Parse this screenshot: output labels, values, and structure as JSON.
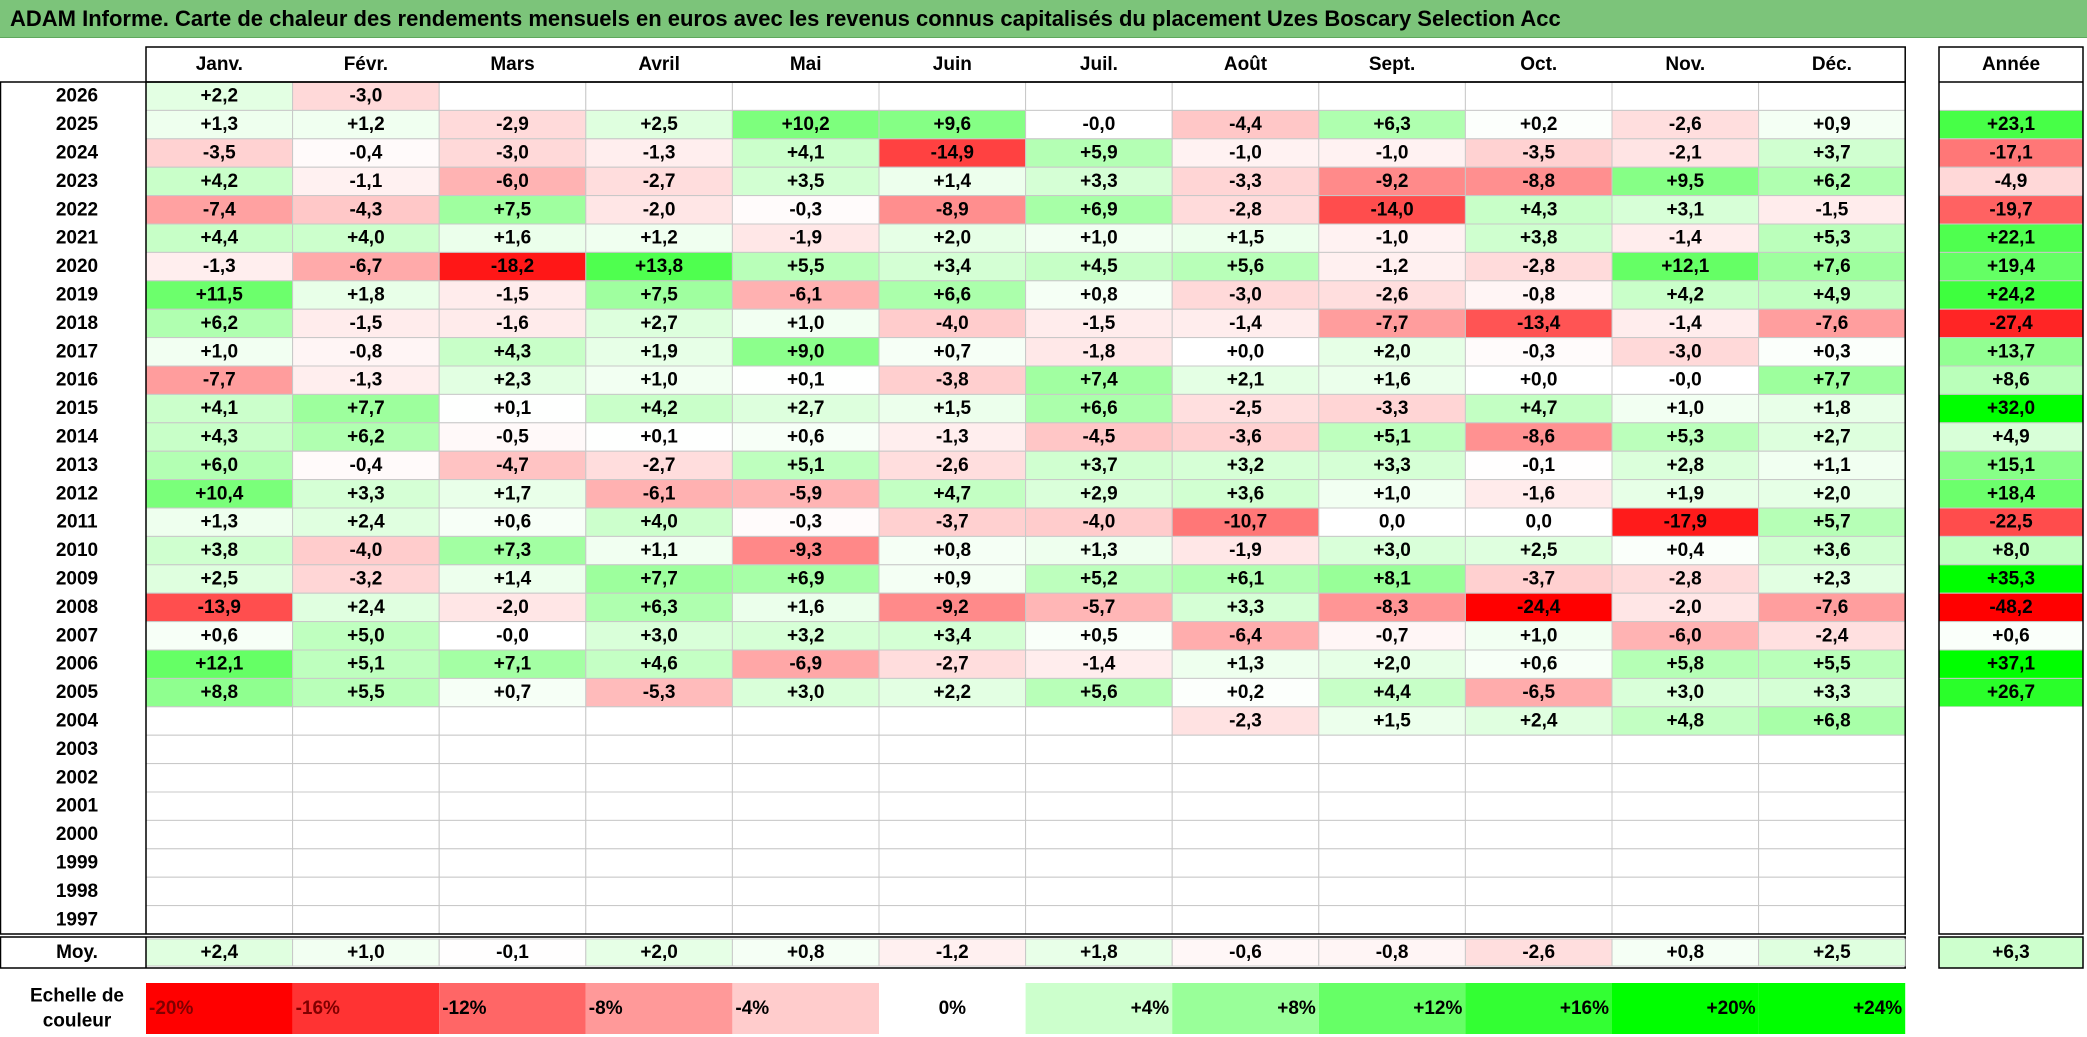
{
  "title": "ADAM Informe. Carte de chaleur des rendements mensuels en euros avec les revenus connus capitalisés du placement Uzes Boscary Selection Acc",
  "chart_data": {
    "type": "heatmap",
    "months": [
      "Janv.",
      "Févr.",
      "Mars",
      "Avril",
      "Mai",
      "Juin",
      "Juil.",
      "Août",
      "Sept.",
      "Oct.",
      "Nov.",
      "Déc."
    ],
    "year_header": "Année",
    "rows": [
      {
        "year": "2026",
        "months": [
          "+2,2",
          "-3,0",
          "",
          "",
          "",
          "",
          "",
          "",
          "",
          "",
          "",
          ""
        ],
        "annual": ""
      },
      {
        "year": "2025",
        "months": [
          "+1,3",
          "+1,2",
          "-2,9",
          "+2,5",
          "+10,2",
          "+9,6",
          "-0,0",
          "-4,4",
          "+6,3",
          "+0,2",
          "-2,6",
          "+0,9"
        ],
        "annual": "+23,1"
      },
      {
        "year": "2024",
        "months": [
          "-3,5",
          "-0,4",
          "-3,0",
          "-1,3",
          "+4,1",
          "-14,9",
          "+5,9",
          "-1,0",
          "-1,0",
          "-3,5",
          "-2,1",
          "+3,7"
        ],
        "annual": "-17,1"
      },
      {
        "year": "2023",
        "months": [
          "+4,2",
          "-1,1",
          "-6,0",
          "-2,7",
          "+3,5",
          "+1,4",
          "+3,3",
          "-3,3",
          "-9,2",
          "-8,8",
          "+9,5",
          "+6,2"
        ],
        "annual": "-4,9"
      },
      {
        "year": "2022",
        "months": [
          "-7,4",
          "-4,3",
          "+7,5",
          "-2,0",
          "-0,3",
          "-8,9",
          "+6,9",
          "-2,8",
          "-14,0",
          "+4,3",
          "+3,1",
          "-1,5"
        ],
        "annual": "-19,7"
      },
      {
        "year": "2021",
        "months": [
          "+4,4",
          "+4,0",
          "+1,6",
          "+1,2",
          "-1,9",
          "+2,0",
          "+1,0",
          "+1,5",
          "-1,0",
          "+3,8",
          "-1,4",
          "+5,3"
        ],
        "annual": "+22,1"
      },
      {
        "year": "2020",
        "months": [
          "-1,3",
          "-6,7",
          "-18,2",
          "+13,8",
          "+5,5",
          "+3,4",
          "+4,5",
          "+5,6",
          "-1,2",
          "-2,8",
          "+12,1",
          "+7,6"
        ],
        "annual": "+19,4"
      },
      {
        "year": "2019",
        "months": [
          "+11,5",
          "+1,8",
          "-1,5",
          "+7,5",
          "-6,1",
          "+6,6",
          "+0,8",
          "-3,0",
          "-2,6",
          "-0,8",
          "+4,2",
          "+4,9"
        ],
        "annual": "+24,2"
      },
      {
        "year": "2018",
        "months": [
          "+6,2",
          "-1,5",
          "-1,6",
          "+2,7",
          "+1,0",
          "-4,0",
          "-1,5",
          "-1,4",
          "-7,7",
          "-13,4",
          "-1,4",
          "-7,6"
        ],
        "annual": "-27,4"
      },
      {
        "year": "2017",
        "months": [
          "+1,0",
          "-0,8",
          "+4,3",
          "+1,9",
          "+9,0",
          "+0,7",
          "-1,8",
          "+0,0",
          "+2,0",
          "-0,3",
          "-3,0",
          "+0,3"
        ],
        "annual": "+13,7"
      },
      {
        "year": "2016",
        "months": [
          "-7,7",
          "-1,3",
          "+2,3",
          "+1,0",
          "+0,1",
          "-3,8",
          "+7,4",
          "+2,1",
          "+1,6",
          "+0,0",
          "-0,0",
          "+7,7"
        ],
        "annual": "+8,6"
      },
      {
        "year": "2015",
        "months": [
          "+4,1",
          "+7,7",
          "+0,1",
          "+4,2",
          "+2,7",
          "+1,5",
          "+6,6",
          "-2,5",
          "-3,3",
          "+4,7",
          "+1,0",
          "+1,8"
        ],
        "annual": "+32,0"
      },
      {
        "year": "2014",
        "months": [
          "+4,3",
          "+6,2",
          "-0,5",
          "+0,1",
          "+0,6",
          "-1,3",
          "-4,5",
          "-3,6",
          "+5,1",
          "-8,6",
          "+5,3",
          "+2,7"
        ],
        "annual": "+4,9"
      },
      {
        "year": "2013",
        "months": [
          "+6,0",
          "-0,4",
          "-4,7",
          "-2,7",
          "+5,1",
          "-2,6",
          "+3,7",
          "+3,2",
          "+3,3",
          "-0,1",
          "+2,8",
          "+1,1"
        ],
        "annual": "+15,1"
      },
      {
        "year": "2012",
        "months": [
          "+10,4",
          "+3,3",
          "+1,7",
          "-6,1",
          "-5,9",
          "+4,7",
          "+2,9",
          "+3,6",
          "+1,0",
          "-1,6",
          "+1,9",
          "+2,0"
        ],
        "annual": "+18,4"
      },
      {
        "year": "2011",
        "months": [
          "+1,3",
          "+2,4",
          "+0,6",
          "+4,0",
          "-0,3",
          "-3,7",
          "-4,0",
          "-10,7",
          "0,0",
          "0,0",
          "-17,9",
          "+5,7"
        ],
        "annual": "-22,5"
      },
      {
        "year": "2010",
        "months": [
          "+3,8",
          "-4,0",
          "+7,3",
          "+1,1",
          "-9,3",
          "+0,8",
          "+1,3",
          "-1,9",
          "+3,0",
          "+2,5",
          "+0,4",
          "+3,6"
        ],
        "annual": "+8,0"
      },
      {
        "year": "2009",
        "months": [
          "+2,5",
          "-3,2",
          "+1,4",
          "+7,7",
          "+6,9",
          "+0,9",
          "+5,2",
          "+6,1",
          "+8,1",
          "-3,7",
          "-2,8",
          "+2,3"
        ],
        "annual": "+35,3"
      },
      {
        "year": "2008",
        "months": [
          "-13,9",
          "+2,4",
          "-2,0",
          "+6,3",
          "+1,6",
          "-9,2",
          "-5,7",
          "+3,3",
          "-8,3",
          "-24,4",
          "-2,0",
          "-7,6"
        ],
        "annual": "-48,2"
      },
      {
        "year": "2007",
        "months": [
          "+0,6",
          "+5,0",
          "-0,0",
          "+3,0",
          "+3,2",
          "+3,4",
          "+0,5",
          "-6,4",
          "-0,7",
          "+1,0",
          "-6,0",
          "-2,4"
        ],
        "annual": "+0,6"
      },
      {
        "year": "2006",
        "months": [
          "+12,1",
          "+5,1",
          "+7,1",
          "+4,6",
          "-6,9",
          "-2,7",
          "-1,4",
          "+1,3",
          "+2,0",
          "+0,6",
          "+5,8",
          "+5,5"
        ],
        "annual": "+37,1"
      },
      {
        "year": "2005",
        "months": [
          "+8,8",
          "+5,5",
          "+0,7",
          "-5,3",
          "+3,0",
          "+2,2",
          "+5,6",
          "+0,2",
          "+4,4",
          "-6,5",
          "+3,0",
          "+3,3"
        ],
        "annual": "+26,7"
      },
      {
        "year": "2004",
        "months": [
          "",
          "",
          "",
          "",
          "",
          "",
          "",
          "-2,3",
          "+1,5",
          "+2,4",
          "+4,8",
          "+6,8"
        ],
        "annual": ""
      },
      {
        "year": "2003",
        "months": [
          "",
          "",
          "",
          "",
          "",
          "",
          "",
          "",
          "",
          "",
          "",
          ""
        ],
        "annual": ""
      },
      {
        "year": "2002",
        "months": [
          "",
          "",
          "",
          "",
          "",
          "",
          "",
          "",
          "",
          "",
          "",
          ""
        ],
        "annual": ""
      },
      {
        "year": "2001",
        "months": [
          "",
          "",
          "",
          "",
          "",
          "",
          "",
          "",
          "",
          "",
          "",
          ""
        ],
        "annual": ""
      },
      {
        "year": "2000",
        "months": [
          "",
          "",
          "",
          "",
          "",
          "",
          "",
          "",
          "",
          "",
          "",
          ""
        ],
        "annual": ""
      },
      {
        "year": "1999",
        "months": [
          "",
          "",
          "",
          "",
          "",
          "",
          "",
          "",
          "",
          "",
          "",
          ""
        ],
        "annual": ""
      },
      {
        "year": "1998",
        "months": [
          "",
          "",
          "",
          "",
          "",
          "",
          "",
          "",
          "",
          "",
          "",
          ""
        ],
        "annual": ""
      },
      {
        "year": "1997",
        "months": [
          "",
          "",
          "",
          "",
          "",
          "",
          "",
          "",
          "",
          "",
          "",
          ""
        ],
        "annual": ""
      }
    ],
    "average": {
      "label": "Moy.",
      "months": [
        "+2,4",
        "+1,0",
        "-0,1",
        "+2,0",
        "+0,8",
        "-1,2",
        "+1,8",
        "-0,6",
        "-0,8",
        "-2,6",
        "+0,8",
        "+2,5"
      ],
      "annual": "+6,3"
    },
    "color_scale": {
      "label_lines": [
        "Echelle de",
        "couleur"
      ],
      "steps": [
        {
          "label": "-20%",
          "value": -20
        },
        {
          "label": "-16%",
          "value": -16
        },
        {
          "label": "-12%",
          "value": -12
        },
        {
          "label": "-8%",
          "value": -8
        },
        {
          "label": "-4%",
          "value": -4
        },
        {
          "label": "0%",
          "value": 0
        },
        {
          "label": "+4%",
          "value": 4
        },
        {
          "label": "+8%",
          "value": 8
        },
        {
          "label": "+12%",
          "value": 12
        },
        {
          "label": "+16%",
          "value": 16
        },
        {
          "label": "+20%",
          "value": 20
        },
        {
          "label": "+24%",
          "value": 24
        }
      ]
    },
    "colors": {
      "negative": "#ff0000",
      "neutral": "#ffffff",
      "positive": "#00ff00",
      "title_band": "#7cc47a"
    }
  }
}
